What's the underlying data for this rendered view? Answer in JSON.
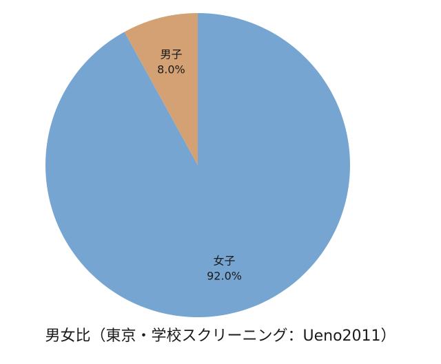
{
  "chart_data": {
    "type": "pie",
    "title": "男女比（東京・学校スクリーニング：Ueno2011）",
    "categories": [
      "女子",
      "男子"
    ],
    "values": [
      92,
      8
    ],
    "value_labels": [
      "92.0%",
      "8.0%"
    ],
    "colors": [
      "#76a5d1",
      "#d4a174"
    ]
  }
}
